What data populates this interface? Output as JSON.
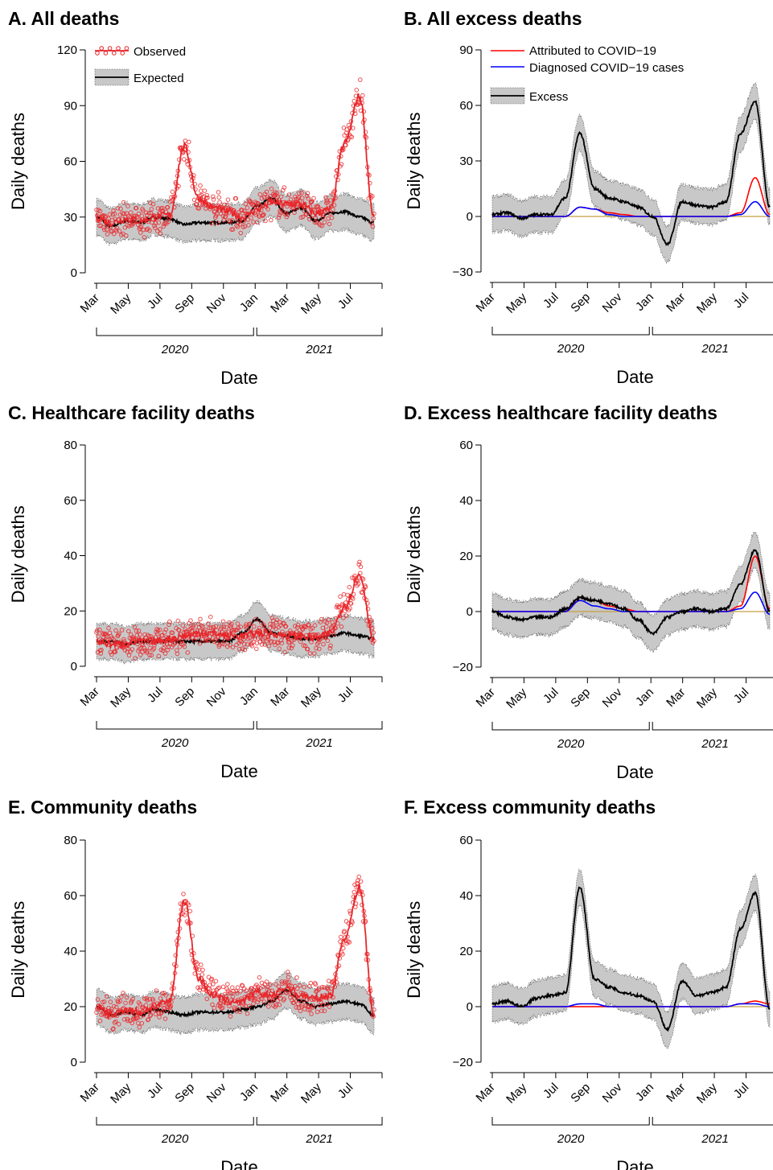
{
  "chart_data": [
    {
      "id": "A",
      "type": "line",
      "title": "A. All deaths",
      "xlabel": "Date",
      "ylabel": "Daily deaths",
      "ylim": [
        -5,
        125
      ],
      "yticks": [
        0,
        30,
        60,
        90,
        120
      ],
      "xticklabels": [
        "Mar",
        "May",
        "Jul",
        "Sep",
        "Nov",
        "Jan",
        "Mar",
        "May",
        "Jul"
      ],
      "years": [
        "2020",
        "2021"
      ],
      "legend": [
        "Observed",
        "Expected"
      ],
      "x": [
        0,
        1,
        2,
        3,
        4,
        5,
        6,
        7,
        8,
        9,
        10,
        11,
        12,
        13,
        14,
        15,
        16,
        17,
        18,
        19
      ],
      "series": [
        {
          "name": "Observed",
          "values": [
            30,
            27,
            29,
            28,
            30,
            31,
            68,
            40,
            35,
            33,
            30,
            34,
            38,
            37,
            37,
            32,
            34,
            70,
            95,
            30
          ]
        },
        {
          "name": "Expected",
          "values": [
            30,
            25,
            28,
            27,
            30,
            29,
            26,
            27,
            27,
            27,
            28,
            36,
            40,
            32,
            35,
            28,
            32,
            33,
            30,
            27
          ]
        }
      ]
    },
    {
      "id": "B",
      "type": "line",
      "title": "B. All excess deaths",
      "xlabel": "Date",
      "ylabel": "Daily deaths",
      "ylim": [
        -35,
        95
      ],
      "yticks": [
        -30,
        0,
        30,
        60,
        90
      ],
      "xticklabels": [
        "Mar",
        "May",
        "Jul",
        "Sep",
        "Nov",
        "Jan",
        "Mar",
        "May",
        "Jul"
      ],
      "years": [
        "2020",
        "2021"
      ],
      "legend": [
        "Attributed to COVID−19",
        "Diagnosed COVID−19 cases",
        "Excess"
      ],
      "x": [
        0,
        1,
        2,
        3,
        4,
        5,
        6,
        7,
        8,
        9,
        10,
        11,
        12,
        13,
        14,
        15,
        16,
        17,
        18,
        19
      ],
      "series": [
        {
          "name": "Excess",
          "values": [
            1,
            2,
            -1,
            1,
            1,
            10,
            45,
            15,
            10,
            8,
            5,
            0,
            -15,
            8,
            6,
            5,
            8,
            45,
            62,
            5
          ]
        },
        {
          "name": "Attributed to COVID−19",
          "values": [
            0,
            0,
            0,
            0,
            0,
            0,
            5,
            4,
            2,
            1,
            0,
            0,
            0,
            0,
            0,
            0,
            0,
            2,
            21,
            1
          ]
        },
        {
          "name": "Diagnosed COVID−19 cases",
          "values": [
            0,
            0,
            0,
            0,
            0,
            0,
            5,
            4,
            1,
            0,
            0,
            0,
            0,
            0,
            0,
            0,
            0,
            1,
            8,
            0
          ]
        }
      ]
    },
    {
      "id": "C",
      "type": "line",
      "title": "C. Healthcare facility deaths",
      "xlabel": "Date",
      "ylabel": "Daily deaths",
      "ylim": [
        -3,
        84
      ],
      "yticks": [
        0,
        20,
        40,
        60,
        80
      ],
      "xticklabels": [
        "Mar",
        "May",
        "Jul",
        "Sep",
        "Nov",
        "Jan",
        "Mar",
        "May",
        "Jul"
      ],
      "years": [
        "2020",
        "2021"
      ],
      "x": [
        0,
        1,
        2,
        3,
        4,
        5,
        6,
        7,
        8,
        9,
        10,
        11,
        12,
        13,
        14,
        15,
        16,
        17,
        18,
        19
      ],
      "series": [
        {
          "name": "Observed",
          "values": [
            9,
            8,
            8,
            9,
            9,
            10,
            11,
            12,
            12,
            11,
            11,
            12,
            12,
            11,
            11,
            10,
            12,
            22,
            33,
            10
          ]
        },
        {
          "name": "Expected",
          "values": [
            9,
            9,
            8,
            9,
            9,
            9,
            9,
            9,
            9,
            9,
            12,
            17,
            12,
            11,
            10,
            10,
            11,
            12,
            11,
            10
          ]
        }
      ]
    },
    {
      "id": "D",
      "type": "line",
      "title": "D. Excess healthcare facility deaths",
      "xlabel": "Date",
      "ylabel": "Daily deaths",
      "ylim": [
        -23,
        64
      ],
      "yticks": [
        -20,
        0,
        20,
        40,
        60
      ],
      "xticklabels": [
        "Mar",
        "May",
        "Jul",
        "Sep",
        "Nov",
        "Jan",
        "Mar",
        "May",
        "Jul"
      ],
      "years": [
        "2020",
        "2021"
      ],
      "x": [
        0,
        1,
        2,
        3,
        4,
        5,
        6,
        7,
        8,
        9,
        10,
        11,
        12,
        13,
        14,
        15,
        16,
        17,
        18,
        19
      ],
      "series": [
        {
          "name": "Excess",
          "values": [
            0,
            -2,
            -3,
            -2,
            -2,
            1,
            5,
            4,
            3,
            1,
            -3,
            -8,
            -2,
            0,
            1,
            0,
            1,
            10,
            22,
            0
          ]
        },
        {
          "name": "Attributed to COVID−19",
          "values": [
            0,
            0,
            0,
            0,
            0,
            0,
            5,
            4,
            2,
            1,
            0,
            0,
            0,
            0,
            0,
            0,
            0,
            2,
            20,
            1
          ]
        },
        {
          "name": "Diagnosed COVID−19 cases",
          "values": [
            0,
            0,
            0,
            0,
            0,
            0,
            4,
            2,
            1,
            0,
            0,
            0,
            0,
            0,
            0,
            0,
            0,
            1,
            7,
            -1
          ]
        }
      ]
    },
    {
      "id": "E",
      "type": "line",
      "title": "E. Community deaths",
      "xlabel": "Date",
      "ylabel": "Daily deaths",
      "ylim": [
        -3,
        84
      ],
      "yticks": [
        0,
        20,
        40,
        60,
        80
      ],
      "xticklabels": [
        "Mar",
        "May",
        "Jul",
        "Sep",
        "Nov",
        "Jan",
        "Mar",
        "May",
        "Jul"
      ],
      "years": [
        "2020",
        "2021"
      ],
      "x": [
        0,
        1,
        2,
        3,
        4,
        5,
        6,
        7,
        8,
        9,
        10,
        11,
        12,
        13,
        14,
        15,
        16,
        17,
        18,
        19
      ],
      "series": [
        {
          "name": "Observed",
          "values": [
            20,
            17,
            19,
            18,
            20,
            22,
            58,
            30,
            24,
            22,
            22,
            25,
            24,
            27,
            24,
            23,
            24,
            45,
            63,
            17
          ]
        },
        {
          "name": "Expected",
          "values": [
            20,
            17,
            18,
            17,
            19,
            18,
            17,
            18,
            18,
            18,
            19,
            20,
            22,
            26,
            22,
            20,
            21,
            22,
            21,
            17
          ]
        }
      ]
    },
    {
      "id": "F",
      "type": "line",
      "title": "F. Excess community deaths",
      "xlabel": "Date",
      "ylabel": "Daily deaths",
      "ylim": [
        -23,
        64
      ],
      "yticks": [
        -20,
        0,
        20,
        40,
        60
      ],
      "xticklabels": [
        "Mar",
        "May",
        "Jul",
        "Sep",
        "Nov",
        "Jan",
        "Mar",
        "May",
        "Jul"
      ],
      "years": [
        "2020",
        "2021"
      ],
      "x": [
        0,
        1,
        2,
        3,
        4,
        5,
        6,
        7,
        8,
        9,
        10,
        11,
        12,
        13,
        14,
        15,
        16,
        17,
        18,
        19
      ],
      "series": [
        {
          "name": "Excess",
          "values": [
            1,
            2,
            0,
            3,
            4,
            5,
            43,
            10,
            7,
            5,
            4,
            2,
            -8,
            9,
            4,
            5,
            7,
            28,
            41,
            -1
          ]
        },
        {
          "name": "Attributed to COVID−19",
          "values": [
            0,
            0,
            0,
            0,
            0,
            0,
            0,
            0,
            0,
            0,
            0,
            0,
            0,
            0,
            0,
            0,
            0,
            1,
            2,
            1
          ]
        },
        {
          "name": "Diagnosed COVID−19 cases",
          "values": [
            0,
            0,
            0,
            0,
            0,
            0,
            1,
            1,
            0,
            0,
            0,
            0,
            0,
            0,
            0,
            0,
            0,
            1,
            1,
            0
          ]
        }
      ]
    }
  ]
}
